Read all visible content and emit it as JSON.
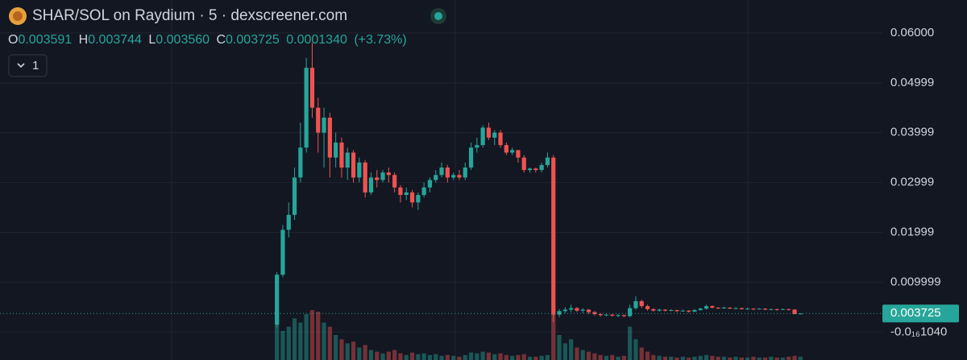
{
  "chart_data": {
    "type": "candlestick",
    "title": "SHAR/SOL on Raydium · 5 · dexscreener.com",
    "legend": {
      "labels": [
        "O",
        "H",
        "L",
        "C"
      ],
      "open": 0.003591,
      "high": 0.003744,
      "low": {
        "value": 0.00356,
        "label": "0.003560"
      },
      "close": 0.003725,
      "change": {
        "value": 0.000134,
        "label": "0.0001340"
      },
      "change_pct": {
        "value": 3.73,
        "label": "(+3.73%)"
      }
    },
    "collapsed_indicators": 1,
    "last_price": 0.003725,
    "up_color": "#26a69a",
    "down_color": "#ef5350",
    "ylim": [
      -0.0056,
      0.0666
    ],
    "yticks": [
      {
        "value": 0.06,
        "label": "0.06000"
      },
      0.04999,
      0.03999,
      0.02999,
      0.01999,
      0.009999,
      {
        "value": -1.04e-17,
        "label": "-0.0₁₆1040"
      }
    ],
    "grid": true,
    "open": [
      0.0015,
      0.0115,
      0.0205,
      0.0235,
      0.031,
      0.037,
      0.053,
      0.045,
      0.04,
      0.043,
      0.035,
      0.038,
      0.033,
      0.036,
      0.031,
      0.034,
      0.028,
      0.031,
      0.0305,
      0.032,
      0.0315,
      0.029,
      0.0275,
      0.028,
      0.026,
      0.0275,
      0.029,
      0.0305,
      0.0315,
      0.033,
      0.031,
      0.0315,
      0.031,
      0.033,
      0.037,
      0.0375,
      0.041,
      0.039,
      0.04,
      0.0375,
      0.036,
      0.0365,
      0.035,
      0.0325,
      0.0328,
      0.0325,
      0.0335,
      0.035,
      0.0035,
      0.0042,
      0.0045,
      0.0048,
      0.0043,
      0.0045,
      0.004,
      0.0036,
      0.0034,
      0.0035,
      0.0033,
      0.0034,
      0.0032,
      0.0048,
      0.0062,
      0.0052,
      0.0046,
      0.0043,
      0.0045,
      0.0043,
      0.0044,
      0.0042,
      0.0043,
      0.0041,
      0.0044,
      0.0047,
      0.0052,
      0.0049,
      0.0048,
      0.0049,
      0.0047,
      0.0048,
      0.0046,
      0.0047,
      0.0046,
      0.0047,
      0.0045,
      0.0046,
      0.0045,
      0.0046,
      0.0045,
      0.003591
    ],
    "high": [
      0.012,
      0.0215,
      0.026,
      0.033,
      0.042,
      0.055,
      0.058,
      0.047,
      0.045,
      0.044,
      0.04,
      0.039,
      0.037,
      0.0365,
      0.035,
      0.0345,
      0.032,
      0.0325,
      0.0325,
      0.033,
      0.032,
      0.0295,
      0.029,
      0.0285,
      0.028,
      0.03,
      0.031,
      0.0325,
      0.034,
      0.0335,
      0.032,
      0.0325,
      0.034,
      0.038,
      0.039,
      0.0415,
      0.042,
      0.0405,
      0.0405,
      0.038,
      0.037,
      0.0365,
      0.0355,
      0.033,
      0.033,
      0.034,
      0.036,
      0.0355,
      0.0046,
      0.005,
      0.0055,
      0.005,
      0.0048,
      0.0046,
      0.0042,
      0.0038,
      0.0037,
      0.0036,
      0.0036,
      0.0035,
      0.0055,
      0.0072,
      0.0065,
      0.0055,
      0.0048,
      0.0047,
      0.0046,
      0.0046,
      0.0045,
      0.0045,
      0.0044,
      0.0046,
      0.0049,
      0.0055,
      0.0054,
      0.005,
      0.0051,
      0.005,
      0.005,
      0.0049,
      0.0049,
      0.0048,
      0.0048,
      0.0048,
      0.0047,
      0.0047,
      0.0047,
      0.0047,
      0.0046,
      0.003744
    ],
    "low": [
      0.001,
      0.011,
      0.019,
      0.0225,
      0.03,
      0.036,
      0.043,
      0.036,
      0.033,
      0.031,
      0.033,
      0.031,
      0.0305,
      0.03,
      0.03,
      0.027,
      0.0275,
      0.029,
      0.03,
      0.03,
      0.028,
      0.026,
      0.0265,
      0.025,
      0.0245,
      0.027,
      0.028,
      0.03,
      0.031,
      0.03,
      0.0305,
      0.0305,
      0.0305,
      0.0325,
      0.036,
      0.037,
      0.0385,
      0.0375,
      0.037,
      0.0355,
      0.0355,
      0.034,
      0.032,
      0.032,
      0.032,
      0.032,
      0.033,
      0.002,
      0.003,
      0.0038,
      0.004,
      0.004,
      0.0038,
      0.0036,
      0.0033,
      0.0031,
      0.0032,
      0.0031,
      0.003,
      0.003,
      0.003,
      0.0045,
      0.0048,
      0.0043,
      0.0041,
      0.0041,
      0.0041,
      0.0042,
      0.004,
      0.0041,
      0.0039,
      0.004,
      0.0043,
      0.0045,
      0.0047,
      0.0046,
      0.0047,
      0.0046,
      0.0046,
      0.0045,
      0.0045,
      0.0044,
      0.0045,
      0.0044,
      0.0044,
      0.0043,
      0.0044,
      0.0043,
      0.0036,
      0.00356
    ],
    "close": [
      0.0115,
      0.0205,
      0.0235,
      0.031,
      0.037,
      0.053,
      0.045,
      0.04,
      0.043,
      0.035,
      0.038,
      0.033,
      0.036,
      0.031,
      0.034,
      0.028,
      0.031,
      0.0305,
      0.032,
      0.0315,
      0.029,
      0.0275,
      0.028,
      0.026,
      0.0275,
      0.029,
      0.0305,
      0.0315,
      0.033,
      0.031,
      0.0315,
      0.031,
      0.033,
      0.037,
      0.0375,
      0.041,
      0.039,
      0.04,
      0.0375,
      0.036,
      0.0365,
      0.035,
      0.0325,
      0.0328,
      0.0325,
      0.0335,
      0.035,
      0.0035,
      0.0042,
      0.0045,
      0.0048,
      0.0043,
      0.0045,
      0.004,
      0.0036,
      0.0034,
      0.0035,
      0.0033,
      0.0034,
      0.0032,
      0.0048,
      0.0062,
      0.0052,
      0.0046,
      0.0043,
      0.0045,
      0.0043,
      0.0044,
      0.0042,
      0.0043,
      0.0041,
      0.0044,
      0.0047,
      0.0052,
      0.0049,
      0.0048,
      0.0049,
      0.0047,
      0.0048,
      0.0046,
      0.0047,
      0.0046,
      0.0047,
      0.0045,
      0.0046,
      0.0045,
      0.0046,
      0.0045,
      0.0036,
      0.003725
    ],
    "volume": [
      60,
      35,
      40,
      50,
      45,
      55,
      60,
      58,
      45,
      40,
      30,
      25,
      20,
      22,
      15,
      18,
      12,
      10,
      8,
      10,
      12,
      8,
      6,
      9,
      7,
      8,
      6,
      7,
      5,
      6,
      5,
      4,
      6,
      9,
      8,
      10,
      9,
      7,
      8,
      6,
      5,
      6,
      7,
      4,
      4,
      5,
      6,
      55,
      30,
      20,
      25,
      15,
      12,
      10,
      8,
      6,
      5,
      6,
      4,
      5,
      40,
      25,
      15,
      10,
      6,
      5,
      4,
      4,
      3,
      4,
      3,
      4,
      5,
      6,
      5,
      4,
      4,
      3,
      4,
      3,
      3,
      4,
      3,
      3,
      4,
      3,
      3,
      4,
      5,
      4
    ]
  }
}
